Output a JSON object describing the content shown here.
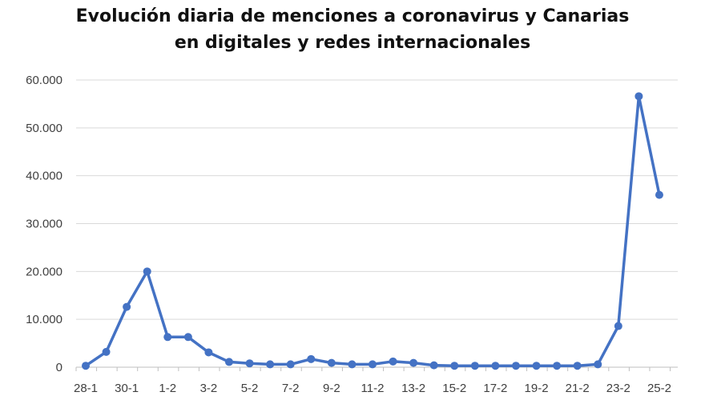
{
  "chart_data": {
    "type": "line",
    "title_lines": [
      "Evolución diaria de menciones a coronavirus y Canarias",
      "en digitales y redes internacionales"
    ],
    "xlabel": "",
    "ylabel": "",
    "ylim": [
      0,
      60000
    ],
    "y_ticks": [
      0,
      10000,
      20000,
      30000,
      40000,
      50000,
      60000
    ],
    "y_tick_labels": [
      "0",
      "10.000",
      "20.000",
      "30.000",
      "40.000",
      "50.000",
      "60.000"
    ],
    "x_tick_labels": [
      "28-1",
      "30-1",
      "1-2",
      "3-2",
      "5-2",
      "7-2",
      "9-2",
      "11-2",
      "13-2",
      "15-2",
      "17-2",
      "19-2",
      "21-2",
      "23-2",
      "25-2"
    ],
    "grid": true,
    "legend": "none",
    "series_color": "#4472C4",
    "series": [
      {
        "values": [
          300,
          3200,
          12600,
          20000,
          6300,
          6300,
          3100,
          1100,
          800,
          600,
          600,
          1700,
          900,
          600,
          600,
          1200,
          900,
          400,
          300,
          300,
          300,
          300,
          300,
          300,
          300,
          600,
          8600,
          56600,
          36000
        ]
      }
    ]
  }
}
